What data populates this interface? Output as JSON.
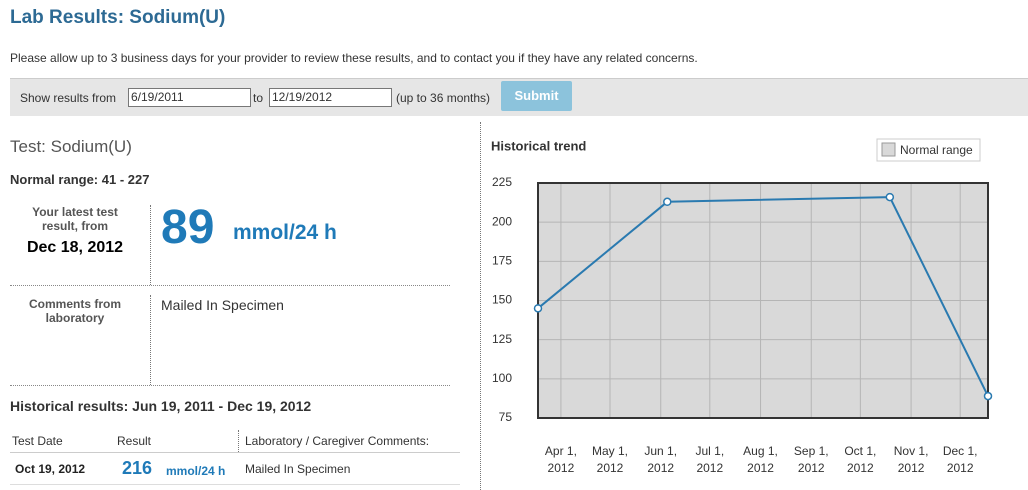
{
  "header": {
    "title": "Lab Results: Sodium(U)",
    "notice": "Please allow up to 3 business days for your provider to review these results, and to contact you if they have any related concerns."
  },
  "filter": {
    "from_label": "Show results from",
    "from": "6/19/2011",
    "to_label": "to",
    "to": "12/19/2012",
    "note": "(up to 36 months)",
    "submit": "Submit"
  },
  "test": {
    "name": "Test: Sodium(U)",
    "normal_range": "Normal range: 41 - 227",
    "latest_label": "Your latest test result, from",
    "latest_date": "Dec 18, 2012",
    "latest_value": 89,
    "unit": "mmol/24 h",
    "comments_label": "Comments from laboratory",
    "comments": "Mailed In Specimen"
  },
  "history": {
    "title": "Historical results: Jun 19, 2011 - Dec 19, 2012",
    "columns": [
      "Test Date",
      "Result",
      "Laboratory / Caregiver Comments:"
    ],
    "rows": [
      {
        "date": "Oct 19, 2012",
        "value": 216,
        "unit": "mmol/24 h",
        "comment": "Mailed In Specimen"
      }
    ]
  },
  "chart_data": {
    "type": "line",
    "title": "Historical trend",
    "x": [
      "2012-03-18",
      "2012-06-05",
      "2012-10-19",
      "2012-12-18"
    ],
    "series": [
      {
        "name": "Sodium(U)",
        "color": "#2a7ab0",
        "values": [
          145,
          213,
          216,
          89
        ]
      }
    ],
    "normal_range": {
      "name": "Normal range",
      "color": "#d9d9d9",
      "low": 41,
      "high": 227
    },
    "xlim": [
      "2012-03-18",
      "2012-12-18"
    ],
    "xticks": [
      {
        "value": "2012-04-01",
        "label": "Apr 1, 2012"
      },
      {
        "value": "2012-05-01",
        "label": "May 1, 2012"
      },
      {
        "value": "2012-06-01",
        "label": "Jun 1, 2012"
      },
      {
        "value": "2012-07-01",
        "label": "Jul 1, 2012"
      },
      {
        "value": "2012-08-01",
        "label": "Aug 1, 2012"
      },
      {
        "value": "2012-09-01",
        "label": "Sep 1, 2012"
      },
      {
        "value": "2012-10-01",
        "label": "Oct 1, 2012"
      },
      {
        "value": "2012-11-01",
        "label": "Nov 1, 2012"
      },
      {
        "value": "2012-12-01",
        "label": "Dec 1, 2012"
      }
    ],
    "ylim": [
      75,
      225
    ],
    "yticks": [
      75,
      100,
      125,
      150,
      175,
      200,
      225
    ],
    "grid": true
  }
}
